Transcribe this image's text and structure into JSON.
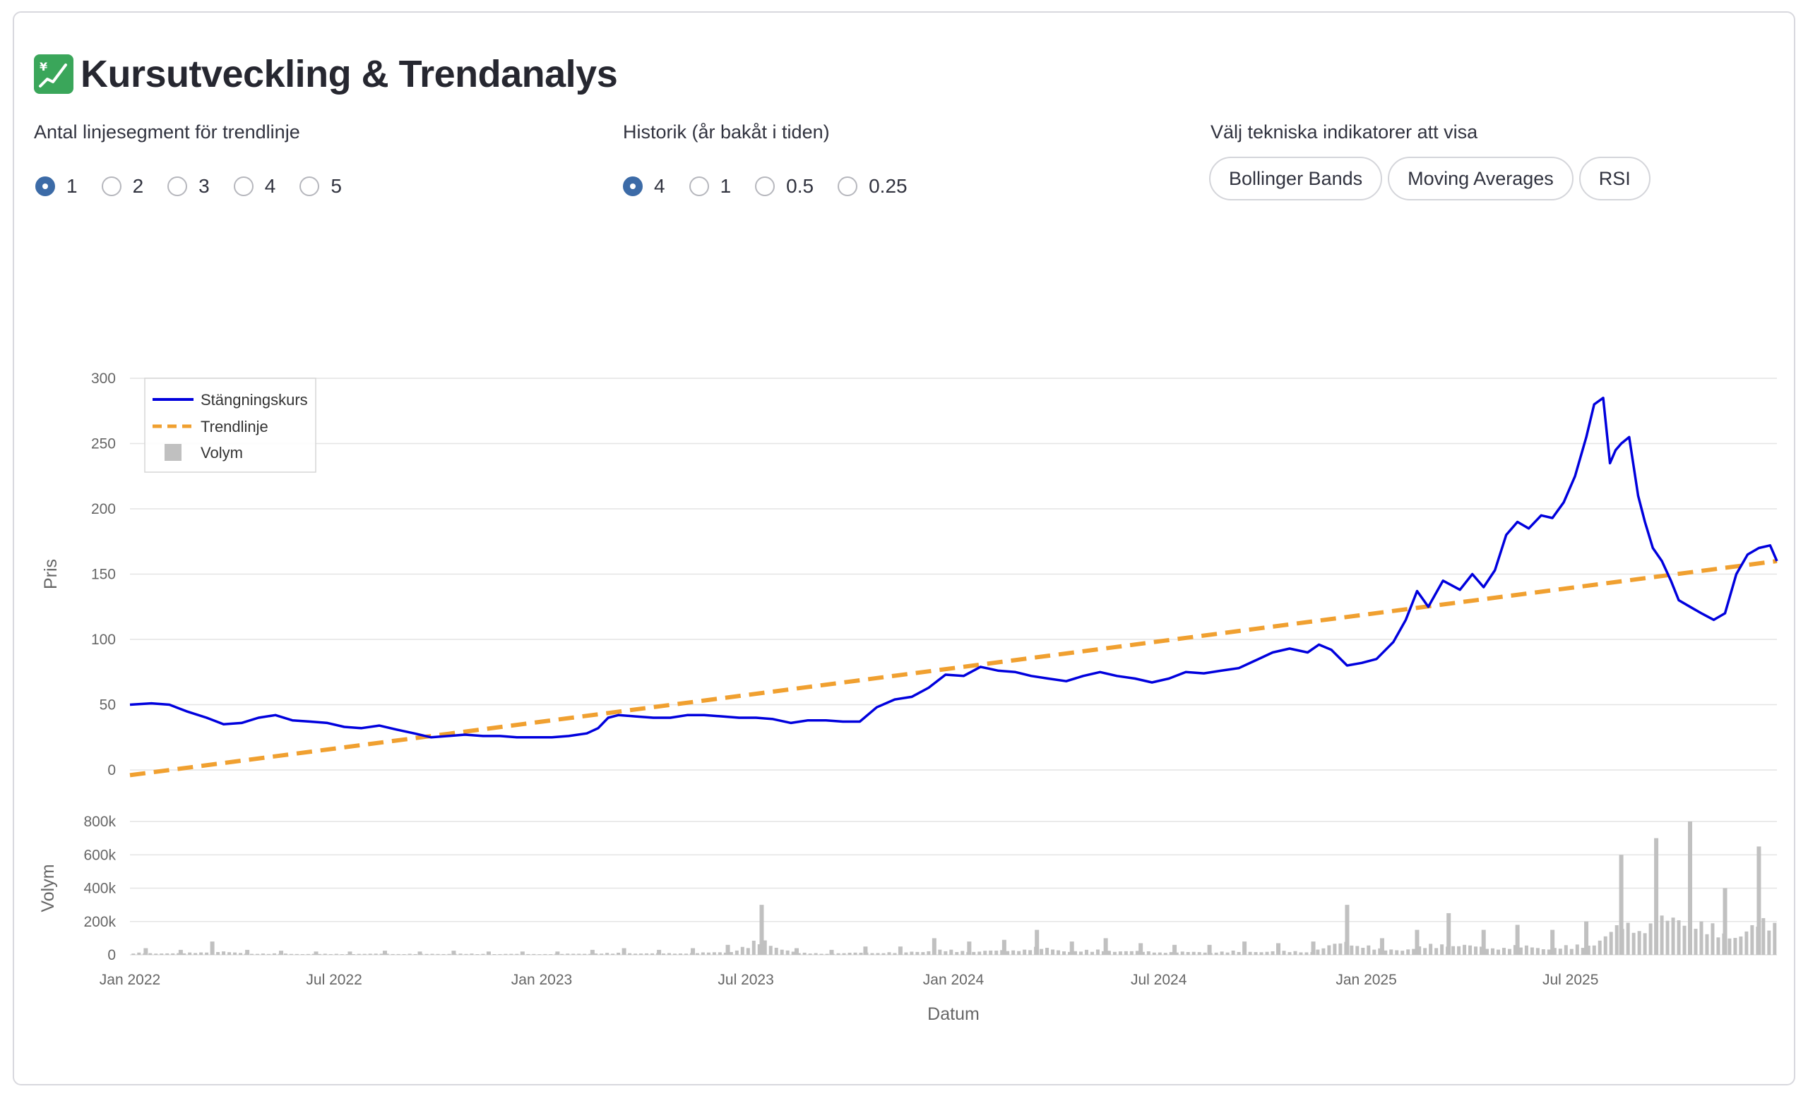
{
  "header": {
    "title": "Kursutveckling & Trendanalys",
    "icon": "chart-increasing-with-yen-icon"
  },
  "controls": {
    "segments": {
      "label": "Antal linjesegment för trendlinje",
      "options": [
        "1",
        "2",
        "3",
        "4",
        "5"
      ],
      "selected": "1"
    },
    "history": {
      "label": "Historik (år bakåt i tiden)",
      "options": [
        "4",
        "1",
        "0.5",
        "0.25"
      ],
      "selected": "4"
    },
    "indicators": {
      "label": "Välj tekniska indikatorer att visa",
      "options": [
        "Bollinger Bands",
        "Moving Averages",
        "RSI"
      ]
    }
  },
  "colors": {
    "price": "#0000dd",
    "trend": "#f0a030",
    "volume": "#c0c0c0",
    "accent": "#3c6ba7"
  },
  "chart_data": {
    "type": "line",
    "xlabel": "Datum",
    "x_ticks": [
      "Jan 2022",
      "Jul 2022",
      "Jan 2023",
      "Jul 2023",
      "Jan 2024",
      "Jul 2024",
      "Jan 2025",
      "Jul 2025"
    ],
    "x_range": [
      "2022-01-01",
      "2025-12-31"
    ],
    "price_panel": {
      "ylabel": "Pris",
      "ylim": [
        0,
        300
      ],
      "y_ticks": [
        "0",
        "50",
        "100",
        "150",
        "200",
        "250",
        "300"
      ],
      "grid": true,
      "legend_position": "top-left"
    },
    "volume_panel": {
      "ylabel": "Volym",
      "ylim": [
        0,
        800000
      ],
      "y_ticks": [
        "0",
        "200k",
        "400k",
        "600k",
        "800k"
      ]
    },
    "legend": [
      "Stängningskurs",
      "Trendlinje",
      "Volym"
    ],
    "series": [
      {
        "name": "Stängningskurs",
        "type": "line",
        "x": [
          "2022-01-01",
          "2022-01-20",
          "2022-02-05",
          "2022-02-20",
          "2022-03-10",
          "2022-03-25",
          "2022-04-10",
          "2022-04-25",
          "2022-05-10",
          "2022-05-25",
          "2022-06-10",
          "2022-06-25",
          "2022-07-10",
          "2022-07-25",
          "2022-08-10",
          "2022-08-25",
          "2022-09-10",
          "2022-09-25",
          "2022-10-10",
          "2022-10-25",
          "2022-11-10",
          "2022-11-25",
          "2022-12-10",
          "2022-12-25",
          "2023-01-10",
          "2023-01-25",
          "2023-02-10",
          "2023-02-20",
          "2023-03-01",
          "2023-03-10",
          "2023-03-25",
          "2023-04-10",
          "2023-04-25",
          "2023-05-10",
          "2023-05-25",
          "2023-06-10",
          "2023-06-25",
          "2023-07-10",
          "2023-07-25",
          "2023-08-10",
          "2023-08-25",
          "2023-09-10",
          "2023-09-25",
          "2023-10-10",
          "2023-10-25",
          "2023-11-10",
          "2023-11-25",
          "2023-12-10",
          "2023-12-25",
          "2024-01-10",
          "2024-01-25",
          "2024-02-10",
          "2024-02-25",
          "2024-03-10",
          "2024-03-25",
          "2024-04-10",
          "2024-04-25",
          "2024-05-10",
          "2024-05-25",
          "2024-06-10",
          "2024-06-25",
          "2024-07-10",
          "2024-07-25",
          "2024-08-10",
          "2024-08-25",
          "2024-09-10",
          "2024-09-25",
          "2024-10-10",
          "2024-10-25",
          "2024-11-10",
          "2024-11-20",
          "2024-12-01",
          "2024-12-15",
          "2024-12-28",
          "2025-01-10",
          "2025-01-25",
          "2025-02-05",
          "2025-02-15",
          "2025-02-25",
          "2025-03-10",
          "2025-03-25",
          "2025-04-05",
          "2025-04-15",
          "2025-04-25",
          "2025-05-05",
          "2025-05-15",
          "2025-05-25",
          "2025-06-05",
          "2025-06-15",
          "2025-06-25",
          "2025-07-05",
          "2025-07-15",
          "2025-07-22",
          "2025-07-30",
          "2025-08-05",
          "2025-08-10",
          "2025-08-15",
          "2025-08-22",
          "2025-08-30",
          "2025-09-05",
          "2025-09-12",
          "2025-09-20",
          "2025-09-28",
          "2025-10-05",
          "2025-10-15",
          "2025-10-25",
          "2025-11-05",
          "2025-11-15",
          "2025-11-25",
          "2025-12-05",
          "2025-12-15",
          "2025-12-25",
          "2025-12-31"
        ],
        "y": [
          50,
          51,
          50,
          45,
          40,
          35,
          36,
          40,
          42,
          38,
          37,
          36,
          33,
          32,
          34,
          31,
          28,
          25,
          26,
          27,
          26,
          26,
          25,
          25,
          25,
          26,
          28,
          32,
          40,
          42,
          41,
          40,
          40,
          42,
          42,
          41,
          40,
          40,
          39,
          36,
          38,
          38,
          37,
          37,
          48,
          54,
          56,
          63,
          73,
          72,
          79,
          76,
          75,
          72,
          70,
          68,
          72,
          75,
          72,
          70,
          67,
          70,
          75,
          74,
          76,
          78,
          84,
          90,
          93,
          90,
          96,
          92,
          80,
          82,
          85,
          98,
          115,
          137,
          125,
          145,
          138,
          150,
          140,
          153,
          180,
          190,
          185,
          195,
          193,
          205,
          225,
          255,
          280,
          285,
          235,
          245,
          250,
          255,
          210,
          190,
          170,
          160,
          145,
          130,
          125,
          120,
          115,
          120,
          150,
          165,
          170,
          172,
          160
        ],
        "color": "#0000dd"
      },
      {
        "name": "Trendlinje",
        "type": "line-dashed",
        "x": [
          "2022-01-01",
          "2025-12-31"
        ],
        "y": [
          -4,
          160
        ],
        "color": "#f0a030"
      },
      {
        "name": "Volym",
        "type": "bar",
        "x": [
          "2022-01",
          "2022-02",
          "2022-03",
          "2022-04",
          "2022-05",
          "2022-06",
          "2022-07",
          "2022-08",
          "2022-09",
          "2022-10",
          "2022-11",
          "2022-12",
          "2023-01",
          "2023-02",
          "2023-03",
          "2023-04",
          "2023-05",
          "2023-06",
          "2023-07",
          "2023-08",
          "2023-09",
          "2023-10",
          "2023-11",
          "2023-12",
          "2024-01",
          "2024-02",
          "2024-03",
          "2024-04",
          "2024-05",
          "2024-06",
          "2024-07",
          "2024-08",
          "2024-09",
          "2024-10",
          "2024-11",
          "2024-12",
          "2025-01",
          "2025-02",
          "2025-03",
          "2025-04",
          "2025-05",
          "2025-06",
          "2025-07",
          "2025-08",
          "2025-09",
          "2025-10",
          "2025-11",
          "2025-12"
        ],
        "y": [
          40000,
          30000,
          80000,
          30000,
          25000,
          20000,
          20000,
          25000,
          20000,
          25000,
          20000,
          20000,
          20000,
          30000,
          40000,
          30000,
          40000,
          60000,
          300000,
          40000,
          30000,
          50000,
          50000,
          100000,
          80000,
          90000,
          150000,
          80000,
          100000,
          70000,
          60000,
          60000,
          80000,
          70000,
          80000,
          300000,
          100000,
          150000,
          250000,
          150000,
          180000,
          150000,
          200000,
          600000,
          700000,
          800000,
          400000,
          650000
        ],
        "color": "#c0c0c0"
      }
    ]
  }
}
